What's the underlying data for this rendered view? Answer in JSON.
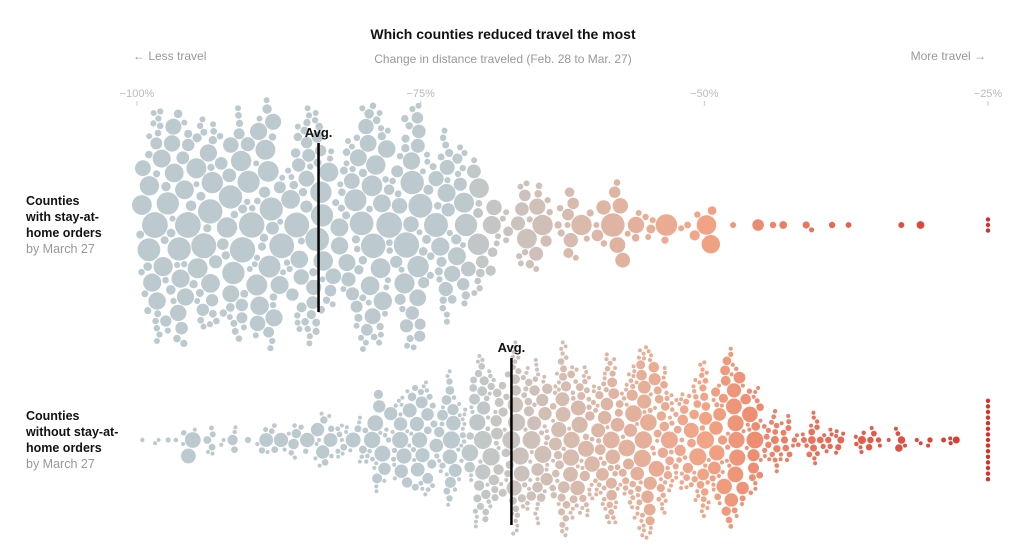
{
  "chart_data": {
    "type": "beeswarm",
    "title": "Which counties reduced travel the most",
    "subtitle": "Change in distance traveled (Feb. 28 to Mar. 27)",
    "left_annotation": "← Less travel",
    "right_annotation": "More travel →",
    "xlim": [
      -100,
      -25
    ],
    "xticks": [
      -100,
      -75,
      -50,
      -25
    ],
    "xtick_labels": [
      "−100%",
      "−75%",
      "−50%",
      "−25%"
    ],
    "bin_width": 2.5,
    "bin_starts": [
      -100,
      -97.5,
      -95,
      -92.5,
      -90,
      -87.5,
      -85,
      -82.5,
      -80,
      -77.5,
      -75,
      -72.5,
      -70,
      -67.5,
      -65,
      -62.5,
      -60,
      -57.5,
      -55,
      -52.5,
      -50,
      -47.5,
      -45,
      -42.5,
      -40,
      -37.5,
      -35,
      -32.5,
      -30,
      -27.5
    ],
    "color_scale": {
      "stops": [
        -100,
        -72,
        -62,
        -50,
        -38,
        -25
      ],
      "colors": [
        "#bccacf",
        "#bccacf",
        "#d6bcb0",
        "#f2a486",
        "#e6654f",
        "#d7302a"
      ]
    },
    "groups": [
      {
        "label_lines": [
          "Counties",
          "with stay-at-",
          "home orders"
        ],
        "label_sub": "by March 27",
        "average": -84,
        "avg_label": "Avg.",
        "county_counts_per_bin": [
          30,
          30,
          30,
          30,
          30,
          32,
          32,
          34,
          34,
          34,
          30,
          22,
          15,
          14,
          12,
          10,
          8,
          7,
          5,
          4,
          3,
          2,
          2,
          2,
          1,
          1,
          1,
          1,
          0,
          3
        ]
      },
      {
        "label_lines": [
          "Counties",
          "without stay-at-",
          "home orders"
        ],
        "label_sub": "by March 27",
        "average": -67,
        "avg_label": "Avg.",
        "county_counts_per_bin": [
          3,
          6,
          8,
          6,
          8,
          10,
          14,
          18,
          22,
          28,
          32,
          40,
          45,
          50,
          55,
          58,
          60,
          58,
          55,
          50,
          45,
          38,
          28,
          20,
          14,
          10,
          7,
          5,
          4,
          15
        ]
      }
    ]
  }
}
